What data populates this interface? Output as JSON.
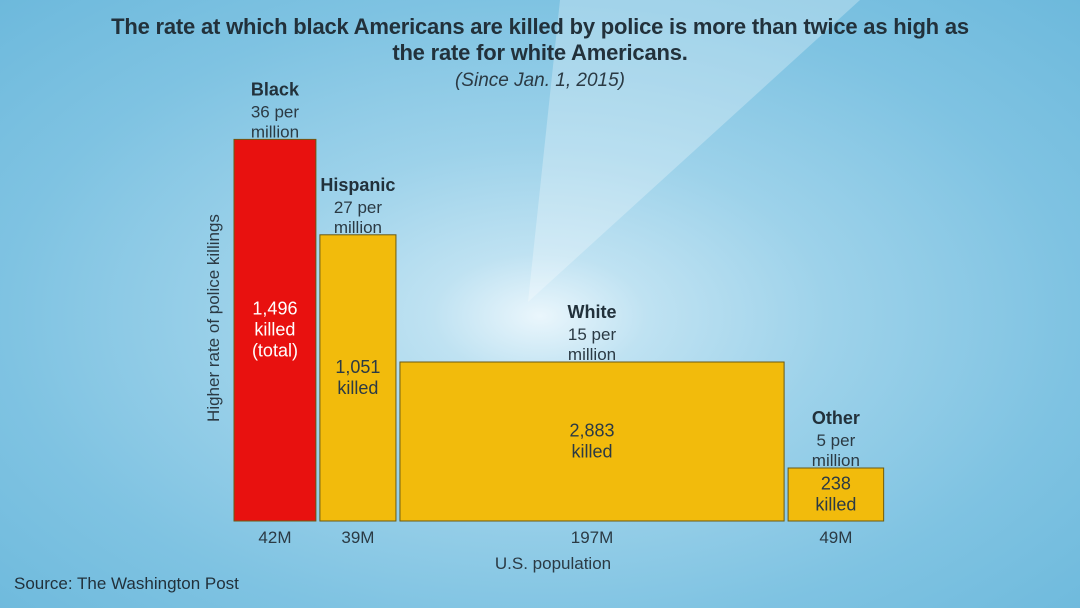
{
  "title": "The rate at which black Americans are killed by police is more than twice as high as the rate for white Americans.",
  "subtitle": "(Since Jan. 1, 2015)",
  "source": "Source: The Washington Post",
  "colors": {
    "highlight": "#e8110f",
    "default": "#f2bb0c",
    "bar_edge": "#6b5a12"
  },
  "chart_data": {
    "type": "bar",
    "variant": "variable-width (mekko)",
    "xlabel": "U.S. population",
    "ylabel": "Higher rate of police killings",
    "categories": [
      "Black",
      "Hispanic",
      "White",
      "Other"
    ],
    "rate_labels": [
      "36 per million",
      "27 per million",
      "15 per million",
      "5 per million"
    ],
    "rate_lines": [
      [
        "36 per",
        "million"
      ],
      [
        "27 per",
        "million"
      ],
      [
        "15 per",
        "million"
      ],
      [
        "5 per",
        "million"
      ]
    ],
    "killed_lines": [
      [
        "1,496",
        "killed",
        "(total)"
      ],
      [
        "1,051",
        "killed"
      ],
      [
        "2,883",
        "killed"
      ],
      [
        "238",
        "killed"
      ]
    ],
    "killed": [
      1496,
      1051,
      2883,
      238
    ],
    "rate_per_million": [
      36,
      27,
      15,
      5
    ],
    "population_millions": [
      42,
      39,
      197,
      49
    ],
    "population_labels": [
      "42M",
      "39M",
      "197M",
      "49M"
    ],
    "bar_colors": [
      "#e8110f",
      "#f2bb0c",
      "#f2bb0c",
      "#f2bb0c"
    ],
    "grid": false
  }
}
